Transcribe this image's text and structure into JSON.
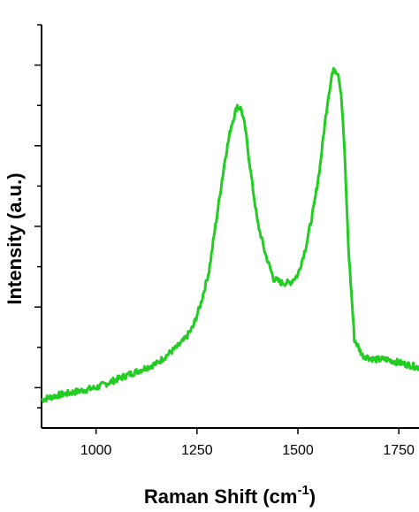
{
  "chart_data": {
    "type": "line",
    "title": "",
    "xlabel_main": "Raman Shift (cm",
    "xlabel_sup": "-1",
    "xlabel_close": ")",
    "ylabel": "Intensity (a.u.)",
    "xlim": [
      865,
      1800
    ],
    "ylim": [
      0,
      100
    ],
    "x_ticks": [
      1000,
      1250,
      1500,
      1750
    ],
    "x_tick_labels": [
      "1000",
      "1250",
      "1500",
      "1750"
    ],
    "y_minor_ticks": [
      5,
      10,
      20,
      30,
      40,
      50,
      60,
      70,
      80,
      90,
      100
    ],
    "y_major_ticks": [
      10,
      30,
      50,
      70,
      90
    ],
    "show_y_tick_labels": false,
    "grid": false,
    "legend": "none",
    "series": [
      {
        "color": "#22cc22",
        "x": [
          865,
          900,
          950,
          1000,
          1050,
          1100,
          1150,
          1200,
          1220,
          1240,
          1260,
          1280,
          1300,
          1320,
          1335,
          1350,
          1360,
          1370,
          1385,
          1400,
          1420,
          1440,
          1460,
          1480,
          1500,
          1520,
          1540,
          1555,
          1565,
          1575,
          1585,
          1592,
          1600,
          1607,
          1615,
          1625,
          1640,
          1660,
          1690,
          1720,
          1760,
          1800
        ],
        "y": [
          7,
          8,
          9,
          10,
          12,
          14,
          16,
          20,
          22,
          25,
          31,
          39,
          53,
          67,
          75,
          80,
          79,
          74,
          62,
          51,
          43,
          37,
          36,
          36,
          38,
          45,
          55,
          65,
          74,
          82,
          88,
          89,
          88,
          83,
          70,
          45,
          22,
          18,
          17,
          17,
          16,
          15
        ]
      }
    ]
  }
}
